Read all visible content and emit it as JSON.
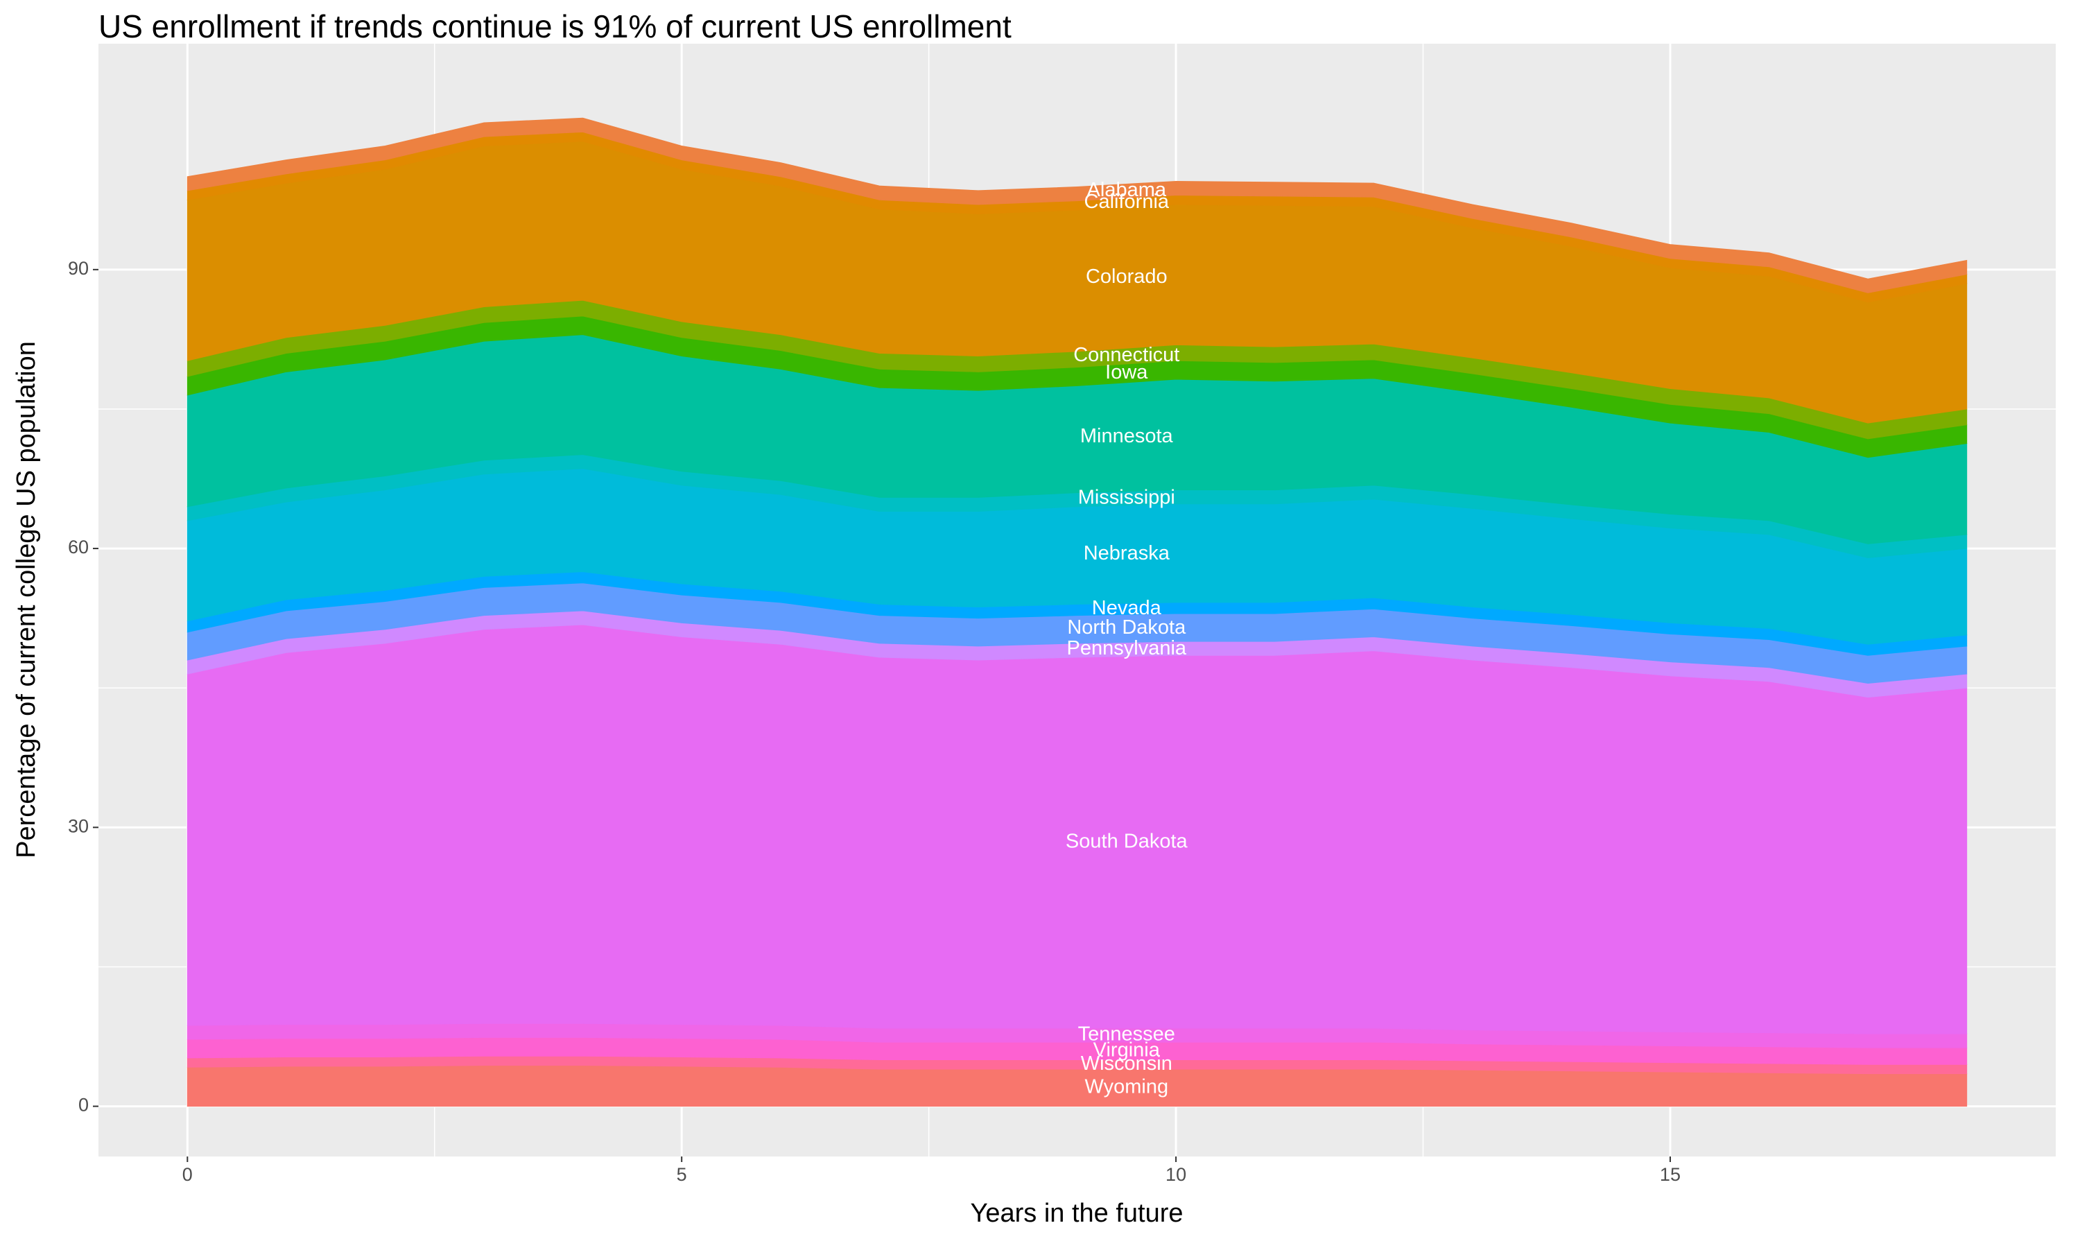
{
  "chart_data": {
    "type": "stacked-area",
    "title": "US enrollment if trends continue is 91% of current US enrollment",
    "x_label": "Years in the future",
    "y_label": "Percentage of current college US population",
    "x": [
      0,
      1,
      2,
      3,
      4,
      5,
      6,
      7,
      8,
      9,
      10,
      11,
      12,
      13,
      14,
      15,
      16,
      17,
      18
    ],
    "xlim": [
      -0.9,
      18.9
    ],
    "xticks": [
      0,
      5,
      10,
      15
    ],
    "ylim": [
      -5.4,
      114.3
    ],
    "yticks": [
      0,
      30,
      60,
      90
    ],
    "grid": true,
    "series": [
      {
        "name": "Wyoming",
        "color": "#F8766D",
        "values": [
          4.2,
          4.3,
          4.3,
          4.4,
          4.4,
          4.3,
          4.2,
          4.0,
          4.0,
          4.0,
          4.0,
          4.0,
          4.0,
          3.9,
          3.8,
          3.7,
          3.6,
          3.5,
          3.5
        ]
      },
      {
        "name": "Wisconsin",
        "color": "#FF6A98",
        "values": [
          1.0,
          1.0,
          1.0,
          1.0,
          1.0,
          1.0,
          1.0,
          1.0,
          1.0,
          1.0,
          1.0,
          1.0,
          1.0,
          1.0,
          1.0,
          1.0,
          1.0,
          1.0,
          1.0
        ]
      },
      {
        "name": "Virginia",
        "color": "#FD61D1",
        "values": [
          2.0,
          2.0,
          2.0,
          2.0,
          2.0,
          2.0,
          2.0,
          1.9,
          1.9,
          1.9,
          1.9,
          1.9,
          1.9,
          1.8,
          1.8,
          1.8,
          1.8,
          1.8,
          1.8
        ]
      },
      {
        "name": "Tennessee",
        "color": "#F066E8",
        "values": [
          1.5,
          1.5,
          1.5,
          1.5,
          1.5,
          1.5,
          1.5,
          1.5,
          1.5,
          1.5,
          1.5,
          1.5,
          1.5,
          1.5,
          1.5,
          1.5,
          1.5,
          1.5,
          1.5
        ]
      },
      {
        "name": "South Dakota",
        "color": "#E76BF3",
        "values": [
          37.8,
          40.0,
          41.0,
          42.4,
          42.9,
          41.7,
          41.0,
          39.9,
          39.6,
          39.9,
          40.1,
          40.1,
          40.6,
          39.8,
          39.1,
          38.3,
          37.8,
          36.2,
          37.2
        ]
      },
      {
        "name": "Pennsylvania",
        "color": "#D089FF",
        "values": [
          1.5,
          1.5,
          1.5,
          1.5,
          1.5,
          1.5,
          1.5,
          1.5,
          1.5,
          1.5,
          1.5,
          1.5,
          1.5,
          1.5,
          1.5,
          1.5,
          1.5,
          1.5,
          1.5
        ]
      },
      {
        "name": "North Dakota",
        "color": "#619CFF",
        "values": [
          3.0,
          3.0,
          3.0,
          3.0,
          3.0,
          3.0,
          3.0,
          3.0,
          3.0,
          3.0,
          3.0,
          3.0,
          3.0,
          3.0,
          3.0,
          3.0,
          3.0,
          3.0,
          3.0
        ]
      },
      {
        "name": "Nevada",
        "color": "#00A9FF",
        "values": [
          1.2,
          1.2,
          1.2,
          1.2,
          1.2,
          1.2,
          1.2,
          1.2,
          1.2,
          1.2,
          1.2,
          1.2,
          1.2,
          1.2,
          1.2,
          1.2,
          1.2,
          1.2,
          1.2
        ]
      },
      {
        "name": "Nebraska",
        "color": "#00BBDA",
        "values": [
          10.8,
          10.5,
          10.8,
          11.0,
          11.1,
          10.6,
          10.4,
          10.0,
          10.3,
          10.5,
          10.6,
          10.6,
          10.6,
          10.6,
          10.3,
          10.2,
          10.1,
          9.3,
          9.3
        ]
      },
      {
        "name": "Mississippi",
        "color": "#00BFC4",
        "values": [
          1.5,
          1.5,
          1.5,
          1.5,
          1.5,
          1.5,
          1.5,
          1.5,
          1.5,
          1.5,
          1.5,
          1.5,
          1.5,
          1.5,
          1.5,
          1.5,
          1.5,
          1.5,
          1.5
        ]
      },
      {
        "name": "Minnesota",
        "color": "#00C19F",
        "values": [
          12.0,
          12.5,
          12.5,
          12.8,
          12.9,
          12.4,
          12.0,
          11.8,
          11.5,
          11.5,
          11.9,
          11.7,
          11.5,
          11.0,
          10.5,
          9.8,
          9.5,
          9.3,
          9.8
        ]
      },
      {
        "name": "Iowa",
        "color": "#39B600",
        "values": [
          2.0,
          2.0,
          2.0,
          2.0,
          2.0,
          2.0,
          2.0,
          2.0,
          2.0,
          2.0,
          2.0,
          2.0,
          2.0,
          2.0,
          2.0,
          2.0,
          2.0,
          2.0,
          2.0
        ]
      },
      {
        "name": "Connecticut",
        "color": "#7CAE00",
        "values": [
          1.7,
          1.7,
          1.7,
          1.7,
          1.7,
          1.7,
          1.7,
          1.7,
          1.7,
          1.7,
          1.7,
          1.7,
          1.7,
          1.7,
          1.7,
          1.7,
          1.7,
          1.7,
          1.7
        ]
      },
      {
        "name": "Colorado",
        "color": "#DB8E00",
        "values": [
          17.3,
          16.6,
          16.8,
          17.3,
          17.1,
          16.4,
          16.0,
          15.5,
          15.3,
          15.2,
          15.1,
          15.2,
          14.8,
          14.0,
          13.6,
          13.0,
          13.1,
          13.0,
          13.5
        ]
      },
      {
        "name": "California",
        "color": "#E18A00",
        "values": [
          1.0,
          1.0,
          1.0,
          1.0,
          1.0,
          1.0,
          1.0,
          1.0,
          1.0,
          1.0,
          1.0,
          1.0,
          1.0,
          1.0,
          1.0,
          1.0,
          1.0,
          1.0,
          1.0
        ]
      },
      {
        "name": "Alabama",
        "color": "#ED8141",
        "values": [
          1.5,
          1.5,
          1.5,
          1.5,
          1.5,
          1.5,
          1.5,
          1.5,
          1.5,
          1.5,
          1.5,
          1.5,
          1.5,
          1.5,
          1.5,
          1.5,
          1.5,
          1.5,
          1.5
        ]
      }
    ]
  }
}
